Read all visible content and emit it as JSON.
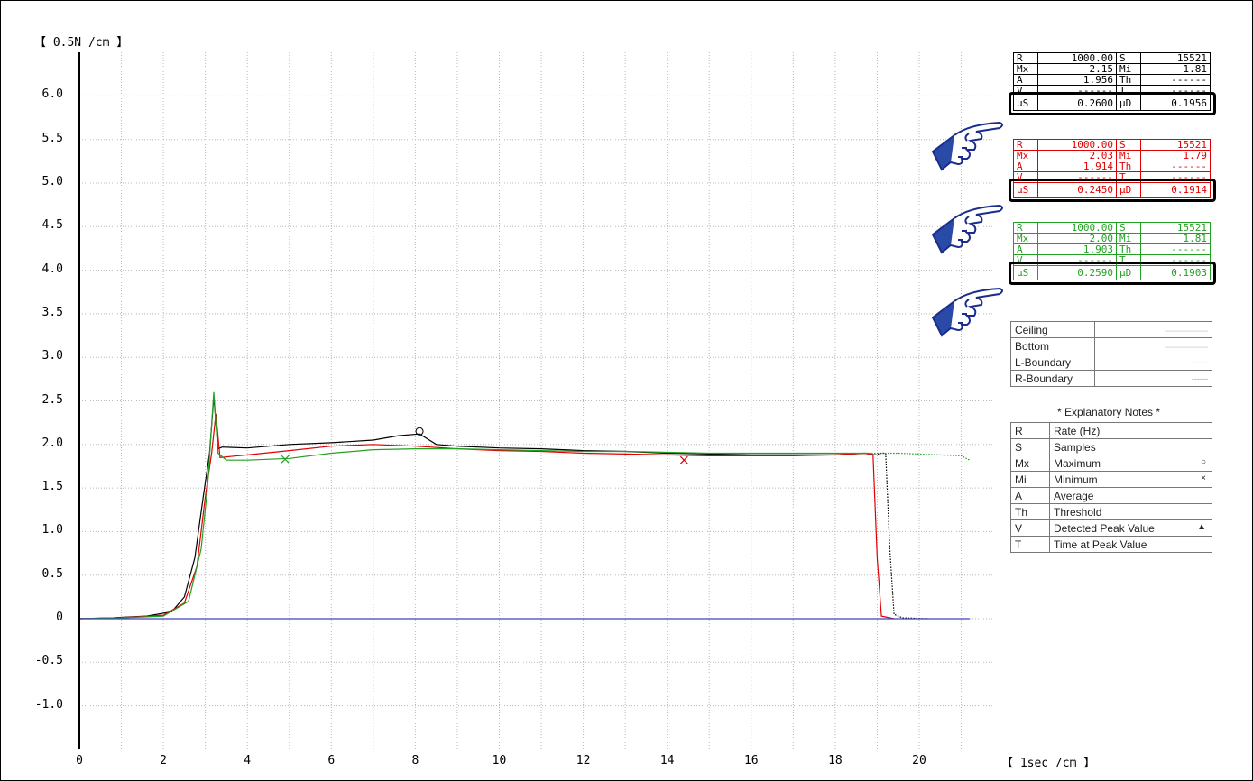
{
  "chart_data": {
    "type": "line",
    "ylabel": "【 0.5N /cm 】",
    "xlabel": "【 1sec /cm 】",
    "xlim": [
      0,
      21.5
    ],
    "ylim": [
      -1.5,
      6.5
    ],
    "xticks": [
      "0",
      "2",
      "4",
      "6",
      "8",
      "10",
      "12",
      "14",
      "16",
      "18",
      "20"
    ],
    "xtick_values": [
      0,
      2,
      4,
      6,
      8,
      10,
      12,
      14,
      16,
      18,
      20
    ],
    "yticks": [
      "6.0",
      "5.5",
      "5.0",
      "4.5",
      "4.0",
      "3.5",
      "3.0",
      "2.5",
      "2.0",
      "1.5",
      "1.0",
      "0.5",
      "0",
      "-0.5",
      "-1.0"
    ],
    "ytick_values": [
      6.0,
      5.5,
      5.0,
      4.5,
      4.0,
      3.5,
      3.0,
      2.5,
      2.0,
      1.5,
      1.0,
      0.5,
      0,
      -0.5,
      -1.0
    ],
    "grid": true,
    "series": [
      {
        "color": "#000000",
        "style": "solid",
        "points": [
          [
            0,
            0
          ],
          [
            0.8,
            0.01
          ],
          [
            1.6,
            0.03
          ],
          [
            2.2,
            0.08
          ],
          [
            2.5,
            0.25
          ],
          [
            2.75,
            0.7
          ],
          [
            2.95,
            1.4
          ],
          [
            3.1,
            1.9
          ],
          [
            3.2,
            2.55
          ],
          [
            3.3,
            1.95
          ],
          [
            3.4,
            1.97
          ],
          [
            4,
            1.96
          ],
          [
            5,
            2.0
          ],
          [
            6,
            2.02
          ],
          [
            7,
            2.05
          ],
          [
            7.6,
            2.1
          ],
          [
            8.1,
            2.12
          ],
          [
            8.5,
            2.0
          ],
          [
            9,
            1.98
          ],
          [
            10,
            1.96
          ],
          [
            11,
            1.95
          ],
          [
            12,
            1.93
          ],
          [
            13,
            1.92
          ],
          [
            14,
            1.9
          ],
          [
            15,
            1.89
          ],
          [
            16,
            1.88
          ],
          [
            17,
            1.88
          ],
          [
            18,
            1.88
          ],
          [
            18.7,
            1.9
          ],
          [
            18.95,
            1.88
          ]
        ]
      },
      {
        "color": "#000000",
        "style": "dotted",
        "points": [
          [
            18.95,
            1.88
          ],
          [
            19.1,
            1.9
          ],
          [
            19.2,
            1.9
          ],
          [
            19.3,
            0.8
          ],
          [
            19.4,
            0.05
          ],
          [
            19.6,
            0.01
          ],
          [
            20.2,
            0
          ]
        ]
      },
      {
        "color": "#e00000",
        "style": "solid",
        "points": [
          [
            0,
            0
          ],
          [
            1.0,
            0.01
          ],
          [
            2.0,
            0.04
          ],
          [
            2.5,
            0.18
          ],
          [
            2.8,
            0.6
          ],
          [
            3.0,
            1.4
          ],
          [
            3.15,
            1.9
          ],
          [
            3.25,
            2.35
          ],
          [
            3.35,
            1.85
          ],
          [
            4,
            1.88
          ],
          [
            5,
            1.93
          ],
          [
            6,
            1.98
          ],
          [
            7,
            2.0
          ],
          [
            8,
            1.98
          ],
          [
            9,
            1.95
          ],
          [
            10,
            1.93
          ],
          [
            11,
            1.92
          ],
          [
            12,
            1.9
          ],
          [
            13,
            1.89
          ],
          [
            14,
            1.88
          ],
          [
            15,
            1.87
          ],
          [
            16,
            1.87
          ],
          [
            17,
            1.87
          ],
          [
            18,
            1.88
          ],
          [
            18.7,
            1.9
          ],
          [
            18.9,
            1.88
          ],
          [
            19.0,
            0.7
          ],
          [
            19.1,
            0.03
          ],
          [
            19.4,
            0
          ]
        ]
      },
      {
        "color": "#22a022",
        "style": "solid",
        "points": [
          [
            0,
            0
          ],
          [
            1.0,
            0.01
          ],
          [
            2.0,
            0.03
          ],
          [
            2.6,
            0.2
          ],
          [
            2.9,
            0.8
          ],
          [
            3.05,
            1.5
          ],
          [
            3.2,
            2.6
          ],
          [
            3.3,
            1.9
          ],
          [
            3.5,
            1.82
          ],
          [
            4,
            1.82
          ],
          [
            5,
            1.84
          ],
          [
            6,
            1.9
          ],
          [
            7,
            1.94
          ],
          [
            8,
            1.95
          ],
          [
            9,
            1.95
          ],
          [
            10,
            1.94
          ],
          [
            11,
            1.93
          ],
          [
            12,
            1.92
          ],
          [
            13,
            1.92
          ],
          [
            14,
            1.91
          ],
          [
            15,
            1.9
          ],
          [
            16,
            1.9
          ],
          [
            17,
            1.9
          ],
          [
            18,
            1.9
          ],
          [
            18.8,
            1.9
          ]
        ]
      },
      {
        "color": "#22a022",
        "style": "dotted",
        "points": [
          [
            18.8,
            1.9
          ],
          [
            19.5,
            1.9
          ],
          [
            20.0,
            1.89
          ],
          [
            20.5,
            1.88
          ],
          [
            21.0,
            1.87
          ],
          [
            21.2,
            1.82
          ]
        ]
      },
      {
        "color": "#4040c0",
        "style": "solid",
        "points": [
          [
            0,
            0
          ],
          [
            21.2,
            0
          ]
        ]
      }
    ],
    "markers": [
      {
        "color": "#000000",
        "symbol": "circle",
        "x": 8.1,
        "y": 2.15
      },
      {
        "color": "#e00000",
        "symbol": "cross",
        "x": 14.4,
        "y": 1.82
      },
      {
        "color": "#22a022",
        "symbol": "cross",
        "x": 4.9,
        "y": 1.83
      }
    ]
  },
  "stats_tables": [
    {
      "color": "#000000",
      "rows": [
        [
          "R",
          "1000.00",
          "S",
          "15521"
        ],
        [
          "Mx",
          "2.15",
          "Mi",
          "1.81"
        ],
        [
          "A",
          "1.956",
          "Th",
          "------"
        ],
        [
          "V",
          "------",
          "T",
          "------"
        ]
      ],
      "mu": [
        "μS",
        "0.2600",
        "μD",
        "0.1956"
      ]
    },
    {
      "color": "#e00000",
      "rows": [
        [
          "R",
          "1000.00",
          "S",
          "15521"
        ],
        [
          "Mx",
          "2.03",
          "Mi",
          "1.79"
        ],
        [
          "A",
          "1.914",
          "Th",
          "------"
        ],
        [
          "V",
          "------",
          "T",
          "------"
        ]
      ],
      "mu": [
        "μS",
        "0.2450",
        "μD",
        "0.1914"
      ]
    },
    {
      "color": "#22a022",
      "rows": [
        [
          "R",
          "1000.00",
          "S",
          "15521"
        ],
        [
          "Mx",
          "2.00",
          "Mi",
          "1.81"
        ],
        [
          "A",
          "1.903",
          "Th",
          "------"
        ],
        [
          "V",
          "------",
          "T",
          "------"
        ]
      ],
      "mu": [
        "μS",
        "0.2590",
        "μD",
        "0.1903"
      ]
    }
  ],
  "boundary_legend": [
    "Ceiling",
    "Bottom",
    "L-Boundary",
    "R-Boundary"
  ],
  "notes": {
    "title": "* Explanatory Notes *",
    "rows": [
      [
        "R",
        "Rate (Hz)",
        ""
      ],
      [
        "S",
        "Samples",
        ""
      ],
      [
        "Mx",
        "Maximum",
        "○"
      ],
      [
        "Mi",
        "Minimum",
        "×"
      ],
      [
        "A",
        "Average",
        ""
      ],
      [
        "Th",
        "Threshold",
        ""
      ],
      [
        "V",
        "Detected Peak Value",
        "▲"
      ],
      [
        "T",
        "Time at Peak Value",
        ""
      ]
    ]
  }
}
